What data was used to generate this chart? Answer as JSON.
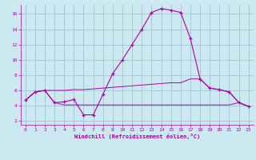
{
  "xlabel": "Windchill (Refroidissement éolien,°C)",
  "background_color": "#cce8f0",
  "line_color": "#aa00aa",
  "grid_color": "#99bbcc",
  "x_ticks": [
    0,
    1,
    2,
    3,
    4,
    5,
    6,
    7,
    8,
    9,
    10,
    11,
    12,
    13,
    14,
    15,
    16,
    17,
    18,
    19,
    20,
    21,
    22,
    23
  ],
  "y_ticks": [
    2,
    4,
    6,
    8,
    10,
    12,
    14,
    16
  ],
  "ylim": [
    1.5,
    17.2
  ],
  "xlim": [
    -0.5,
    23.5
  ],
  "line1_x": [
    0,
    1,
    2,
    3,
    4,
    5,
    6,
    7,
    8,
    9,
    10,
    11,
    12,
    13,
    14,
    15,
    16,
    17,
    18,
    19,
    20,
    21,
    22,
    23
  ],
  "line1_y": [
    4.7,
    5.8,
    6.0,
    4.4,
    4.5,
    4.8,
    2.8,
    2.8,
    5.5,
    8.2,
    10.0,
    12.0,
    14.0,
    16.2,
    16.7,
    16.5,
    16.2,
    12.8,
    7.5,
    6.3,
    6.1,
    5.8,
    4.4,
    3.9
  ],
  "line2_x": [
    0,
    1,
    2,
    3,
    4,
    5,
    6,
    7,
    8,
    9,
    10,
    11,
    12,
    13,
    14,
    15,
    16,
    17,
    18,
    19,
    20,
    21,
    22,
    23
  ],
  "line2_y": [
    4.7,
    5.8,
    6.0,
    4.4,
    4.1,
    4.1,
    4.1,
    4.1,
    4.1,
    4.1,
    4.1,
    4.1,
    4.1,
    4.1,
    4.1,
    4.1,
    4.1,
    4.1,
    4.1,
    4.1,
    4.1,
    4.1,
    4.4,
    3.9
  ],
  "line3_x": [
    0,
    1,
    2,
    3,
    4,
    5,
    6,
    7,
    8,
    9,
    10,
    11,
    12,
    13,
    14,
    15,
    16,
    17,
    18,
    19,
    20,
    21,
    22,
    23
  ],
  "line3_y": [
    4.7,
    5.8,
    6.0,
    6.0,
    6.0,
    6.1,
    6.1,
    6.2,
    6.3,
    6.4,
    6.5,
    6.6,
    6.7,
    6.8,
    6.9,
    7.0,
    7.0,
    7.5,
    7.5,
    6.3,
    6.1,
    5.8,
    4.4,
    3.9
  ]
}
